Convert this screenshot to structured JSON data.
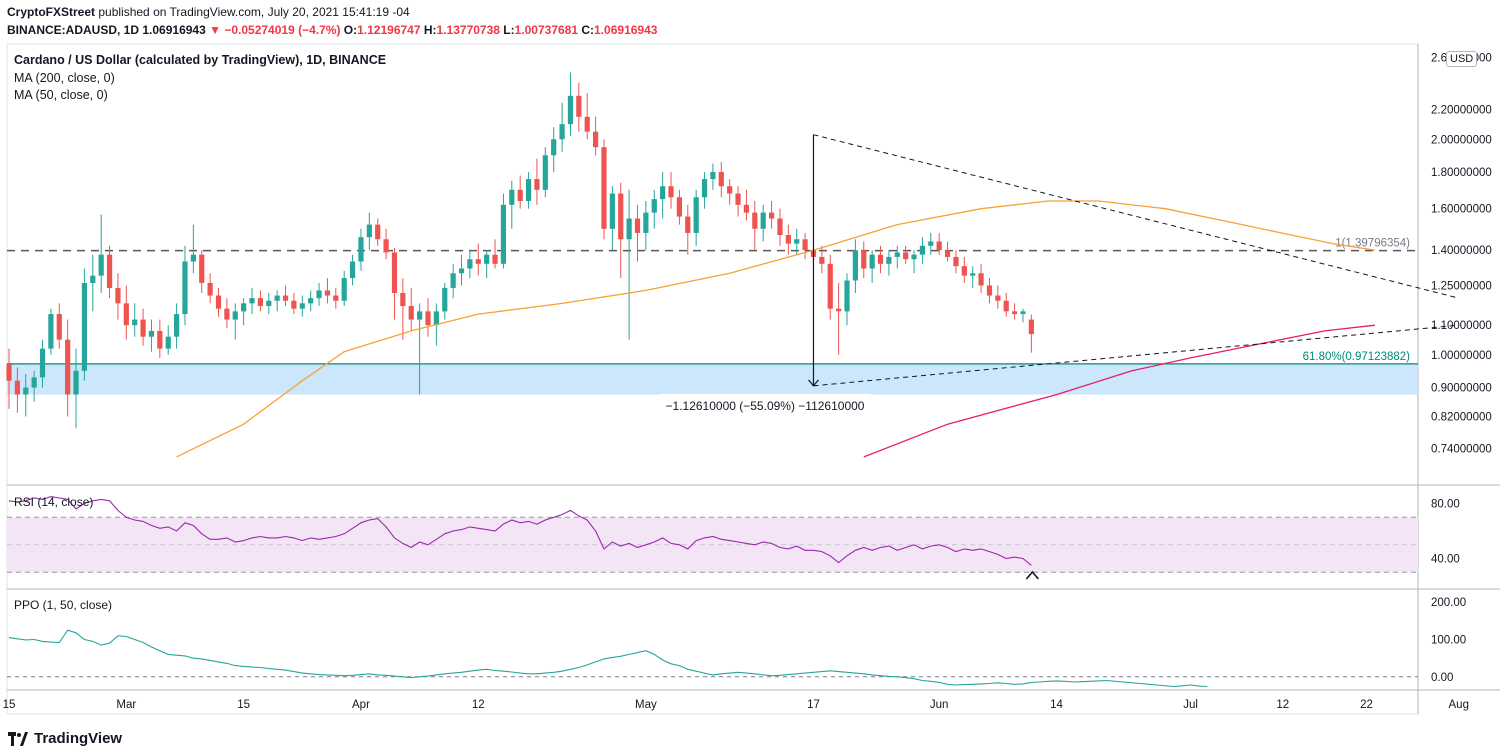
{
  "header": {
    "publisher": "CryptoFXStreet",
    "published_text": "published on TradingView.com, July 20, 2021 15:41:19 -04",
    "symbol": "BINANCE:ADAUSD, 1D",
    "last": "1.06916943",
    "change": "−0.05274019 (−4.7%)",
    "open_label": "O:",
    "open": "1.12196747",
    "high_label": "H:",
    "high": "1.13770738",
    "low_label": "L:",
    "low": "1.00737681",
    "close_label": "C:",
    "close": "1.06916943"
  },
  "legend": {
    "title": "Cardano / US Dollar (calculated by TradingView), 1D, BINANCE",
    "ma200": "MA (200, close, 0)",
    "ma50": "MA (50, close, 0)"
  },
  "currency_badge": "USD",
  "footer": {
    "brand": "TradingView"
  },
  "colors": {
    "up": "#26a69a",
    "down": "#ef5350",
    "ma200": "#e91e63",
    "ma50": "#f7a234",
    "rsi": "#9c27b0",
    "ppo": "#26a69a",
    "fib_zone": "#cce6fb",
    "fib_line": "#00897b"
  },
  "chart_data": [
    {
      "type": "candlestick",
      "title": "Cardano / US Dollar (calculated by TradingView), 1D, BINANCE",
      "scale": "log",
      "ylim": [
        0.66,
        2.7
      ],
      "y_ticks": [
        "2.60000000",
        "2.20000000",
        "2.00000000",
        "1.80000000",
        "1.60000000",
        "1.40000000",
        "1.25000000",
        "1.10000000",
        "1.00000000",
        "0.90000000",
        "0.82000000",
        "0.74000000"
      ],
      "y_tick_values": [
        2.6,
        2.2,
        2.0,
        1.8,
        1.6,
        1.4,
        1.25,
        1.1,
        1.0,
        0.9,
        0.82,
        0.74
      ],
      "x_ticks": [
        "15",
        "Mar",
        "15",
        "Apr",
        "12",
        "May",
        "17",
        "Jun",
        "14",
        "Jul",
        "12",
        "22",
        "Aug"
      ],
      "x_tick_days": [
        0,
        14,
        28,
        42,
        56,
        76,
        96,
        111,
        125,
        141,
        152,
        162,
        173
      ],
      "start_date": "2021-02-15",
      "candles": [
        [
          0.97,
          1.02,
          0.84,
          0.92
        ],
        [
          0.92,
          0.96,
          0.83,
          0.88
        ],
        [
          0.88,
          0.94,
          0.82,
          0.9
        ],
        [
          0.9,
          0.95,
          0.86,
          0.93
        ],
        [
          0.93,
          1.05,
          0.9,
          1.02
        ],
        [
          1.02,
          1.16,
          1.0,
          1.14
        ],
        [
          1.14,
          1.18,
          1.02,
          1.05
        ],
        [
          1.05,
          1.12,
          0.82,
          0.88
        ],
        [
          0.88,
          1.02,
          0.79,
          0.95
        ],
        [
          0.95,
          1.32,
          0.92,
          1.26
        ],
        [
          1.26,
          1.38,
          1.15,
          1.29
        ],
        [
          1.29,
          1.57,
          1.22,
          1.38
        ],
        [
          1.38,
          1.42,
          1.2,
          1.24
        ],
        [
          1.24,
          1.3,
          1.12,
          1.18
        ],
        [
          1.18,
          1.25,
          1.05,
          1.1
        ],
        [
          1.1,
          1.18,
          1.06,
          1.12
        ],
        [
          1.12,
          1.16,
          1.03,
          1.06
        ],
        [
          1.06,
          1.12,
          1.01,
          1.08
        ],
        [
          1.08,
          1.12,
          0.99,
          1.02
        ],
        [
          1.02,
          1.1,
          1.0,
          1.06
        ],
        [
          1.06,
          1.18,
          1.02,
          1.14
        ],
        [
          1.14,
          1.42,
          1.1,
          1.35
        ],
        [
          1.35,
          1.52,
          1.3,
          1.38
        ],
        [
          1.38,
          1.4,
          1.22,
          1.26
        ],
        [
          1.26,
          1.3,
          1.18,
          1.21
        ],
        [
          1.21,
          1.24,
          1.13,
          1.16
        ],
        [
          1.16,
          1.2,
          1.09,
          1.12
        ],
        [
          1.12,
          1.18,
          1.05,
          1.15
        ],
        [
          1.15,
          1.2,
          1.1,
          1.18
        ],
        [
          1.18,
          1.24,
          1.14,
          1.2
        ],
        [
          1.2,
          1.23,
          1.15,
          1.17
        ],
        [
          1.17,
          1.22,
          1.14,
          1.19
        ],
        [
          1.19,
          1.23,
          1.15,
          1.21
        ],
        [
          1.21,
          1.25,
          1.17,
          1.19
        ],
        [
          1.19,
          1.22,
          1.14,
          1.16
        ],
        [
          1.16,
          1.21,
          1.13,
          1.18
        ],
        [
          1.18,
          1.23,
          1.15,
          1.2
        ],
        [
          1.2,
          1.26,
          1.17,
          1.23
        ],
        [
          1.23,
          1.28,
          1.18,
          1.21
        ],
        [
          1.21,
          1.24,
          1.16,
          1.19
        ],
        [
          1.19,
          1.31,
          1.17,
          1.28
        ],
        [
          1.28,
          1.38,
          1.25,
          1.35
        ],
        [
          1.35,
          1.5,
          1.31,
          1.46
        ],
        [
          1.46,
          1.58,
          1.4,
          1.52
        ],
        [
          1.52,
          1.55,
          1.42,
          1.45
        ],
        [
          1.45,
          1.5,
          1.36,
          1.39
        ],
        [
          1.39,
          1.41,
          1.12,
          1.22
        ],
        [
          1.22,
          1.28,
          1.05,
          1.17
        ],
        [
          1.17,
          1.24,
          1.08,
          1.12
        ],
        [
          1.12,
          1.18,
          0.88,
          1.15
        ],
        [
          1.15,
          1.2,
          1.06,
          1.1
        ],
        [
          1.1,
          1.18,
          1.03,
          1.15
        ],
        [
          1.15,
          1.26,
          1.12,
          1.24
        ],
        [
          1.24,
          1.34,
          1.2,
          1.3
        ],
        [
          1.3,
          1.38,
          1.25,
          1.32
        ],
        [
          1.32,
          1.4,
          1.28,
          1.36
        ],
        [
          1.36,
          1.43,
          1.29,
          1.34
        ],
        [
          1.34,
          1.4,
          1.28,
          1.38
        ],
        [
          1.38,
          1.45,
          1.32,
          1.34
        ],
        [
          1.34,
          1.68,
          1.32,
          1.62
        ],
        [
          1.62,
          1.75,
          1.5,
          1.7
        ],
        [
          1.7,
          1.78,
          1.6,
          1.64
        ],
        [
          1.64,
          1.8,
          1.6,
          1.76
        ],
        [
          1.76,
          1.88,
          1.62,
          1.7
        ],
        [
          1.7,
          1.95,
          1.66,
          1.9
        ],
        [
          1.9,
          2.08,
          1.8,
          2.0
        ],
        [
          2.0,
          2.25,
          1.92,
          2.1
        ],
        [
          2.1,
          2.48,
          2.02,
          2.3
        ],
        [
          2.3,
          2.4,
          2.05,
          2.15
        ],
        [
          2.15,
          2.32,
          2.0,
          2.05
        ],
        [
          2.05,
          2.15,
          1.9,
          1.95
        ],
        [
          1.95,
          2.0,
          1.45,
          1.5
        ],
        [
          1.5,
          1.72,
          1.4,
          1.68
        ],
        [
          1.68,
          1.74,
          1.28,
          1.45
        ],
        [
          1.45,
          1.7,
          1.05,
          1.55
        ],
        [
          1.55,
          1.62,
          1.35,
          1.48
        ],
        [
          1.48,
          1.64,
          1.4,
          1.58
        ],
        [
          1.58,
          1.7,
          1.5,
          1.65
        ],
        [
          1.65,
          1.8,
          1.55,
          1.72
        ],
        [
          1.72,
          1.8,
          1.6,
          1.66
        ],
        [
          1.66,
          1.7,
          1.52,
          1.56
        ],
        [
          1.56,
          1.62,
          1.38,
          1.48
        ],
        [
          1.48,
          1.7,
          1.42,
          1.66
        ],
        [
          1.66,
          1.8,
          1.6,
          1.76
        ],
        [
          1.76,
          1.85,
          1.7,
          1.8
        ],
        [
          1.8,
          1.86,
          1.66,
          1.72
        ],
        [
          1.72,
          1.76,
          1.62,
          1.68
        ],
        [
          1.68,
          1.72,
          1.56,
          1.62
        ],
        [
          1.62,
          1.7,
          1.54,
          1.58
        ],
        [
          1.58,
          1.64,
          1.4,
          1.5
        ],
        [
          1.5,
          1.62,
          1.44,
          1.58
        ],
        [
          1.58,
          1.64,
          1.5,
          1.55
        ],
        [
          1.55,
          1.6,
          1.42,
          1.47
        ],
        [
          1.47,
          1.52,
          1.38,
          1.43
        ],
        [
          1.43,
          1.5,
          1.38,
          1.45
        ],
        [
          1.45,
          1.48,
          1.36,
          1.4
        ],
        [
          1.4,
          1.44,
          1.32,
          1.37
        ],
        [
          1.37,
          1.42,
          1.3,
          1.34
        ],
        [
          1.34,
          1.38,
          1.12,
          1.16
        ],
        [
          1.16,
          1.26,
          1.0,
          1.15
        ],
        [
          1.15,
          1.3,
          1.1,
          1.27
        ],
        [
          1.27,
          1.45,
          1.22,
          1.4
        ],
        [
          1.4,
          1.44,
          1.28,
          1.32
        ],
        [
          1.32,
          1.4,
          1.26,
          1.38
        ],
        [
          1.38,
          1.42,
          1.3,
          1.34
        ],
        [
          1.34,
          1.4,
          1.29,
          1.37
        ],
        [
          1.37,
          1.42,
          1.32,
          1.39
        ],
        [
          1.39,
          1.42,
          1.34,
          1.36
        ],
        [
          1.36,
          1.4,
          1.3,
          1.38
        ],
        [
          1.38,
          1.46,
          1.34,
          1.42
        ],
        [
          1.42,
          1.48,
          1.38,
          1.44
        ],
        [
          1.44,
          1.48,
          1.38,
          1.4
        ],
        [
          1.4,
          1.44,
          1.35,
          1.37
        ],
        [
          1.37,
          1.4,
          1.3,
          1.33
        ],
        [
          1.33,
          1.37,
          1.26,
          1.29
        ],
        [
          1.29,
          1.33,
          1.24,
          1.3
        ],
        [
          1.3,
          1.34,
          1.22,
          1.25
        ],
        [
          1.25,
          1.28,
          1.18,
          1.21
        ],
        [
          1.21,
          1.25,
          1.16,
          1.19
        ],
        [
          1.19,
          1.22,
          1.13,
          1.15
        ],
        [
          1.15,
          1.18,
          1.12,
          1.14
        ],
        [
          1.14,
          1.16,
          1.11,
          1.15
        ],
        [
          1.12,
          1.138,
          1.007,
          1.069
        ]
      ],
      "series": [
        {
          "name": "MA (200, close, 0)",
          "points": [
            [
              102,
              0.72
            ],
            [
              112,
              0.8
            ],
            [
              125,
              0.88
            ],
            [
              134,
              0.95
            ],
            [
              141,
              0.99
            ],
            [
              150,
              1.04
            ],
            [
              157,
              1.08
            ],
            [
              163,
              1.1
            ]
          ]
        },
        {
          "name": "MA (50, close, 0)",
          "points": [
            [
              20,
              0.72
            ],
            [
              28,
              0.8
            ],
            [
              35,
              0.92
            ],
            [
              40,
              1.01
            ],
            [
              48,
              1.08
            ],
            [
              56,
              1.14
            ],
            [
              66,
              1.18
            ],
            [
              76,
              1.23
            ],
            [
              86,
              1.3
            ],
            [
              96,
              1.4
            ],
            [
              106,
              1.52
            ],
            [
              116,
              1.6
            ],
            [
              124,
              1.64
            ],
            [
              130,
              1.64
            ],
            [
              138,
              1.6
            ],
            [
              146,
              1.53
            ],
            [
              153,
              1.47
            ],
            [
              158,
              1.43
            ],
            [
              163,
              1.4
            ]
          ]
        }
      ],
      "annotations": {
        "fib_label": "1(1.39796354)",
        "fib_level": 1.39796354,
        "fib618_label": "61.80%(0.97123882)",
        "fib618_level": 0.97123882,
        "support_zone": [
          0.88,
          0.97123882
        ],
        "measure_label": "−1.12610000 (−55.09%) −112610000",
        "measure_from": [
          96,
          2.03
        ],
        "measure_to": [
          96,
          0.905
        ],
        "trendline_upper": [
          [
            96,
            2.03
          ],
          [
            173,
            1.2
          ]
        ],
        "trendline_lower": [
          [
            96,
            0.905
          ],
          [
            173,
            1.1
          ]
        ]
      }
    },
    {
      "type": "line",
      "title": "RSI (14, close)",
      "y_ticks": [
        "80.00",
        "40.00"
      ],
      "y_tick_values": [
        80,
        40
      ],
      "ylim": [
        20,
        92
      ],
      "band": [
        30,
        70
      ],
      "values": [
        82,
        81,
        82,
        84,
        83,
        85,
        84,
        83,
        76,
        80,
        82,
        83,
        82,
        75,
        70,
        68,
        67,
        64,
        62,
        63,
        60,
        66,
        64,
        58,
        54,
        54,
        55,
        52,
        53,
        55,
        56,
        55,
        55,
        56,
        55,
        53,
        55,
        54,
        55,
        56,
        58,
        62,
        66,
        68,
        69,
        63,
        55,
        51,
        48,
        52,
        50,
        54,
        58,
        60,
        61,
        63,
        62,
        61,
        60,
        65,
        68,
        66,
        67,
        65,
        68,
        70,
        72,
        75,
        71,
        68,
        60,
        47,
        52,
        49,
        51,
        48,
        50,
        52,
        55,
        51,
        50,
        47,
        53,
        55,
        56,
        54,
        53,
        52,
        51,
        50,
        52,
        51,
        48,
        47,
        49,
        46,
        46,
        45,
        42,
        37,
        42,
        46,
        48,
        46,
        48,
        49,
        46,
        48,
        50,
        47,
        49,
        50,
        48,
        45,
        47,
        46,
        47,
        45,
        43,
        40,
        41,
        40,
        35
      ]
    },
    {
      "type": "line",
      "title": "PPO (1, 50, close)",
      "y_ticks": [
        "200.00",
        "100.00",
        "0.00"
      ],
      "y_tick_values": [
        200,
        100,
        0
      ],
      "ylim": [
        -30,
        230
      ],
      "values": [
        105,
        102,
        99,
        100,
        95,
        93,
        92,
        125,
        118,
        100,
        95,
        85,
        90,
        110,
        108,
        100,
        92,
        80,
        70,
        60,
        58,
        56,
        50,
        48,
        44,
        40,
        36,
        30,
        28,
        26,
        25,
        22,
        20,
        18,
        14,
        10,
        8,
        6,
        5,
        4,
        3,
        4,
        6,
        8,
        5,
        4,
        2,
        0,
        -2,
        0,
        2,
        5,
        8,
        10,
        12,
        15,
        18,
        20,
        17,
        15,
        13,
        10,
        8,
        8,
        10,
        12,
        15,
        20,
        25,
        32,
        40,
        48,
        52,
        55,
        60,
        65,
        70,
        60,
        45,
        35,
        30,
        20,
        15,
        10,
        5,
        8,
        10,
        12,
        10,
        8,
        5,
        3,
        4,
        6,
        8,
        10,
        12,
        14,
        16,
        14,
        12,
        10,
        8,
        5,
        3,
        1,
        0,
        -2,
        -5,
        -10,
        -12,
        -15,
        -20,
        -22,
        -21,
        -20,
        -19,
        -18,
        -16,
        -18,
        -20,
        -19,
        -15,
        -14,
        -12,
        -11,
        -12,
        -14,
        -13,
        -12,
        -11,
        -10,
        -12,
        -14,
        -16,
        -18,
        -20,
        -22,
        -24,
        -26,
        -24,
        -22,
        -25,
        -26
      ]
    }
  ]
}
